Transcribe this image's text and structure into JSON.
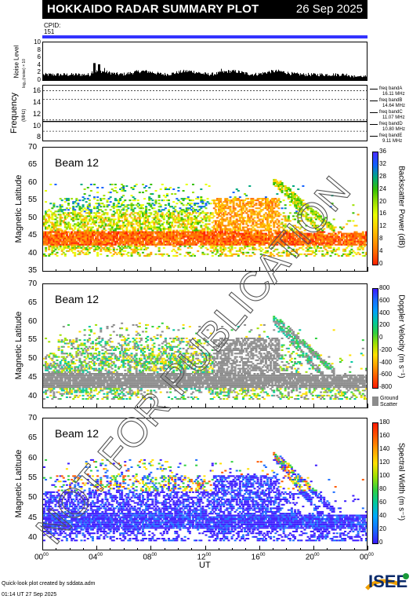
{
  "header": {
    "title": "HOKKAIDO RADAR SUMMARY PLOT",
    "date": "26 Sep 2025"
  },
  "cpid": {
    "label": "CPID:",
    "value": "151"
  },
  "noise_panel": {
    "ylabel": "Noise Level",
    "ylabel_sub": "log₁₀(noise) × 10",
    "yticks": [
      "0",
      "2",
      "4",
      "6",
      "8",
      "10"
    ]
  },
  "freq_panel": {
    "ylabel": "Frequency",
    "ylabel_sub": "(MHz)",
    "yticks": [
      "8",
      "10",
      "12",
      "14",
      "16"
    ],
    "bands": [
      {
        "name": "freq bandA",
        "value": "16.11 MHz"
      },
      {
        "name": "freq bandB",
        "value": "14.64 MHz"
      },
      {
        "name": "freq bandC",
        "value": "11.07 MHz"
      },
      {
        "name": "freq bandD",
        "value": "10.80 MHz"
      },
      {
        "name": "freq bandE",
        "value": "9.11 MHz"
      }
    ]
  },
  "panels": [
    {
      "beam": "Beam 12",
      "ylabel": "Magnetic Latitude",
      "yticks": [
        "35",
        "40",
        "45",
        "50",
        "55",
        "60",
        "65",
        "70"
      ],
      "cbar_label": "Backscatter Power (dB)",
      "cbar_ticks": [
        "0",
        "4",
        "8",
        "12",
        "16",
        "20",
        "24",
        "28",
        "32",
        "36"
      ],
      "colors": [
        "#ff2200",
        "#ff6a00",
        "#ffa000",
        "#ffd000",
        "#e8ff00",
        "#9be000",
        "#36c000",
        "#00a880",
        "#1060ff",
        "#4a2cff"
      ]
    },
    {
      "beam": "Beam 12",
      "ylabel": "Magnetic Latitude",
      "yticks": [
        "40",
        "45",
        "50",
        "55",
        "60",
        "65",
        "70"
      ],
      "cbar_label": "Doppler Velocity (m s⁻¹)",
      "cbar_ticks": [
        "800",
        "600",
        "400",
        "200",
        "0",
        "-200",
        "-400",
        "-600",
        "-800"
      ],
      "ground_label": [
        "Ground",
        "Scatter"
      ],
      "colors": [
        "#3a1aff",
        "#1a6cff",
        "#00a0ff",
        "#00c8a0",
        "#30d040",
        "#a0e000",
        "#ffe000",
        "#ffa000",
        "#ff5a00",
        "#ff1a00"
      ]
    },
    {
      "beam": "Beam 12",
      "ylabel": "Magnetic Latitude",
      "yticks": [
        "40",
        "45",
        "50",
        "55",
        "60",
        "65",
        "70"
      ],
      "cbar_label": "Spectral Width (m s⁻¹)",
      "cbar_ticks": [
        "0",
        "20",
        "40",
        "60",
        "80",
        "100",
        "120",
        "140",
        "160",
        "180"
      ],
      "colors": [
        "#3a1aff",
        "#1a6cff",
        "#00a8ff",
        "#00c8a0",
        "#30d040",
        "#a0e000",
        "#ffe000",
        "#ffa000",
        "#ff5a00",
        "#ff1a00"
      ]
    }
  ],
  "xaxis": {
    "ticks": [
      "00",
      "04",
      "08",
      "12",
      "16",
      "20",
      "00"
    ],
    "tick_sup": "00",
    "label": "UT"
  },
  "footer": {
    "line1": "Quick-look plot created by sddata.adm",
    "line2": "01:14 UT 27 Sep 2025"
  },
  "logo": "ISEE",
  "watermark": "NOT FOR PUBLICATION",
  "chart_data": {
    "type": "heatmap",
    "title": "HOKKAIDO RADAR SUMMARY PLOT",
    "xlabel": "UT",
    "x_range_hours": [
      0,
      24
    ],
    "panels": [
      {
        "name": "Noise Level",
        "ylim": [
          0,
          10
        ],
        "typical_value": 2,
        "spikes": [
          {
            "ut": 4.3,
            "value": 4.5
          },
          {
            "ut": 4.5,
            "value": 4.2
          },
          {
            "ut": 13.2,
            "value": 3
          }
        ]
      },
      {
        "name": "Frequency",
        "ylim": [
          8,
          17
        ],
        "bands_mhz": [
          16.11,
          14.64,
          11.07,
          10.8,
          9.11
        ],
        "operating_mhz": 10.8
      },
      {
        "name": "Backscatter Power",
        "ylabel": "Magnetic Latitude",
        "ylim": [
          35,
          70
        ],
        "clim": [
          0,
          36
        ],
        "unit": "dB"
      },
      {
        "name": "Doppler Velocity",
        "ylabel": "Magnetic Latitude",
        "ylim": [
          37,
          70
        ],
        "clim": [
          -800,
          800
        ],
        "unit": "m s-1"
      },
      {
        "name": "Spectral Width",
        "ylabel": "Magnetic Latitude",
        "ylim": [
          37,
          70
        ],
        "clim": [
          0,
          180
        ],
        "unit": "m s-1"
      }
    ]
  }
}
